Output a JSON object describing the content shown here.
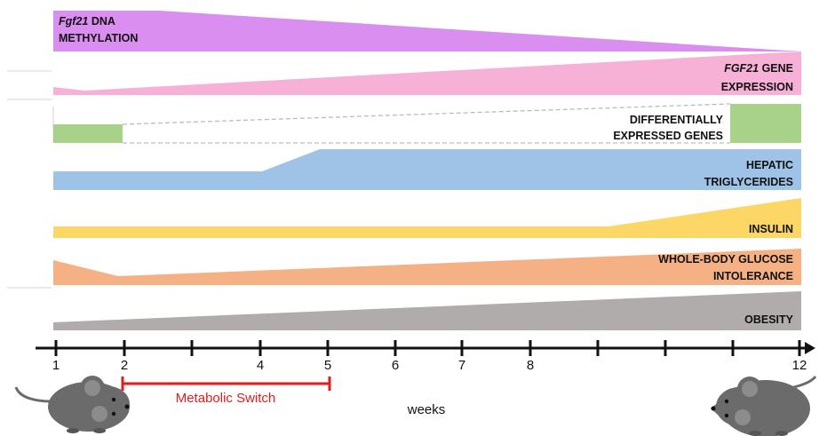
{
  "bands": {
    "methylation": {
      "label_italic": "Fgf21",
      "label_rest": " DNA",
      "label_line2": "METHYLATION",
      "color": "#d98ef0"
    },
    "expression": {
      "label_italic": "FGF21",
      "label_rest": " GENE",
      "label_line2": "EXPRESSION",
      "color": "#f7b0d6"
    },
    "degs": {
      "label_line1": "DIFFERENTIALLY",
      "label_line2": "EXPRESSED GENES",
      "color": "#a8d18a"
    },
    "triglycerides": {
      "label_line1": "HEPATIC",
      "label_line2": "TRIGLYCERIDES",
      "color": "#9fc3e6"
    },
    "insulin": {
      "label_line1": "INSULIN",
      "color": "#fdd765"
    },
    "glucose": {
      "label_line1": "WHOLE-BODY GLUCOSE",
      "label_line2": "INTOLERANCE",
      "color": "#f5b184"
    },
    "obesity": {
      "label_line1": "OBESITY",
      "color": "#b0acac"
    }
  },
  "axis": {
    "tick_labels": [
      "1",
      "2",
      "4",
      "5",
      "6",
      "7",
      "8",
      "12"
    ],
    "title": "weeks",
    "switch_label": "Metabolic Switch",
    "switch_color": "#e21b1b"
  },
  "icons": {
    "left": "mouse-lean-icon",
    "right": "mouse-obese-icon"
  }
}
